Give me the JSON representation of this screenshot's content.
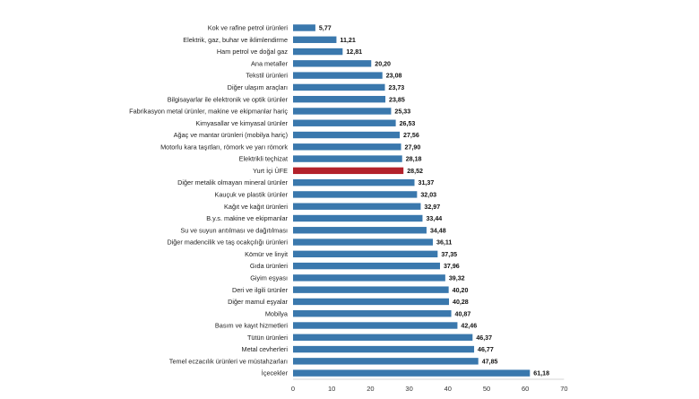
{
  "chart_data": {
    "type": "bar",
    "orientation": "horizontal",
    "title": "",
    "xlabel": "",
    "ylabel": "",
    "xlim": [
      0,
      70
    ],
    "x_ticks": [
      "0",
      "10",
      "20",
      "30",
      "40",
      "50",
      "60",
      "70"
    ],
    "grid": false,
    "legend": "none",
    "colors": {
      "bar": "#3a78ad",
      "highlight_bar": "#b3212b",
      "axis_line": "#c8c8c8"
    },
    "highlight_category": "Yurt İçi ÜFE",
    "categories": [
      "Kok ve rafine petrol ürünleri",
      "Elektrik, gaz, buhar ve iklimlendirme",
      "Ham petrol ve doğal gaz",
      "Ana metaller",
      "Tekstil ürünleri",
      "Diğer ulaşım araçları",
      "Bilgisayarlar ile elektronik ve optik ürünler",
      "Fabrikasyon metal ürünler, makine ve ekipmanlar hariç",
      "Kimyasallar ve kimyasal ürünler",
      "Ağaç ve mantar ürünleri (mobilya hariç)",
      "Motorlu kara taşıtları, römork ve yarı römork",
      "Elektrikli teçhizat",
      "Yurt İçi ÜFE",
      "Diğer metalik olmayan mineral ürünler",
      "Kauçuk ve plastik ürünler",
      "Kağıt ve kağıt ürünleri",
      "B.y.s. makine ve ekipmanlar",
      "Su ve suyun arıtılması ve dağıtılması",
      "Diğer madencilik ve taş ocakçılığı ürünleri",
      "Kömür ve linyit",
      "Gıda ürünleri",
      "Giyim eşyası",
      "Deri ve ilgili ürünler",
      "Diğer mamul eşyalar",
      "Mobilya",
      "Basım ve kayıt hizmetleri",
      "Tütün ürünleri",
      "Metal cevherleri",
      "Temel eczacılık ürünleri ve müstahzarları",
      "İçecekler"
    ],
    "values": [
      5.77,
      11.21,
      12.81,
      20.2,
      23.08,
      23.73,
      23.85,
      25.33,
      26.53,
      27.56,
      27.9,
      28.18,
      28.52,
      31.37,
      32.03,
      32.97,
      33.44,
      34.48,
      36.11,
      37.35,
      37.96,
      39.32,
      40.2,
      40.28,
      40.87,
      42.46,
      46.37,
      46.77,
      47.85,
      61.18
    ],
    "value_labels": [
      "5,77",
      "11,21",
      "12,81",
      "20,20",
      "23,08",
      "23,73",
      "23,85",
      "25,33",
      "26,53",
      "27,56",
      "27,90",
      "28,18",
      "28,52",
      "31,37",
      "32,03",
      "32,97",
      "33,44",
      "34,48",
      "36,11",
      "37,35",
      "37,96",
      "39,32",
      "40,20",
      "40,28",
      "40,87",
      "42,46",
      "46,37",
      "46,77",
      "47,85",
      "61,18"
    ]
  }
}
